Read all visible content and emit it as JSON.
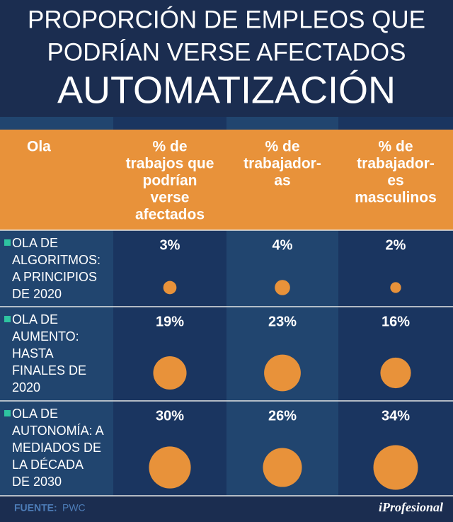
{
  "header": {
    "title_lines": [
      "PROPORCIÓN DE EMPLEOS QUE",
      "PODRÍAN VERSE AFECTADOS",
      "AUTOMATIZACIÓN"
    ]
  },
  "table": {
    "columns": [
      [
        "Ola"
      ],
      [
        "% de",
        "trabajos que",
        "podrían",
        "verse",
        "afectados"
      ],
      [
        "% de",
        "trabajador-",
        "as"
      ],
      [
        "% de",
        "trabajador-",
        "es",
        "masculinos"
      ]
    ],
    "rows": [
      {
        "label": [
          "OLA DE",
          "ALGORITMOS:",
          "A PRINCIPIOS",
          "DE 2020"
        ],
        "values": [
          3,
          4,
          2
        ],
        "value_labels": [
          "3%",
          "4%",
          "2%"
        ]
      },
      {
        "label": [
          "OLA DE",
          "AUMENTO:",
          "HASTA",
          "FINALES DE",
          "2020"
        ],
        "values": [
          19,
          23,
          16
        ],
        "value_labels": [
          "19%",
          "23%",
          "16%"
        ]
      },
      {
        "label": [
          "OLA DE",
          "AUTONOMÍA: A",
          "MEDIADOS DE",
          "LA DÉCADA",
          "DE 2030"
        ],
        "values": [
          30,
          26,
          34
        ],
        "value_labels": [
          "30%",
          "26%",
          "34%"
        ]
      }
    ]
  },
  "footer": {
    "source_label": "FUENTE:",
    "source": "PWC",
    "brand": "iProfesional"
  }
}
